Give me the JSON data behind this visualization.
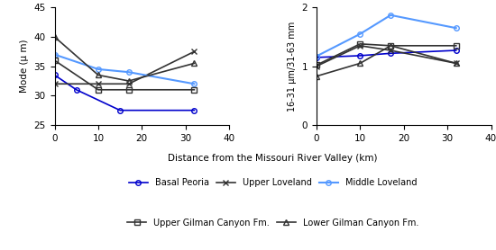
{
  "left_x": {
    "Basal Peoria": [
      0,
      5,
      15,
      32
    ],
    "Upper Loveland": [
      0,
      10,
      17,
      32
    ],
    "Middle Loveland": [
      0,
      10,
      17,
      32
    ],
    "Upper Gilman Canyon Fm.": [
      0,
      10,
      17,
      32
    ],
    "Lower Gilman Canyon Fm.": [
      0,
      10,
      17,
      32
    ]
  },
  "left_y": {
    "Basal Peoria": [
      33.5,
      31.0,
      27.5,
      27.5
    ],
    "Upper Loveland": [
      32.0,
      32.0,
      32.0,
      37.5
    ],
    "Middle Loveland": [
      37.0,
      34.5,
      34.0,
      32.0
    ],
    "Upper Gilman Canyon Fm.": [
      36.0,
      31.0,
      31.0,
      31.0
    ],
    "Lower Gilman Canyon Fm.": [
      40.0,
      33.5,
      32.5,
      35.5
    ]
  },
  "right_x": {
    "Basal Peoria": [
      0,
      10,
      17,
      32
    ],
    "Upper Loveland": [
      0,
      10,
      17,
      32
    ],
    "Middle Loveland": [
      0,
      10,
      17,
      32
    ],
    "Upper Gilman Canyon Fm.": [
      0,
      10,
      17,
      32
    ],
    "Lower Gilman Canyon Fm.": [
      0,
      10,
      17,
      32
    ]
  },
  "right_y": {
    "Basal Peoria": [
      1.15,
      1.18,
      1.22,
      1.27
    ],
    "Upper Loveland": [
      1.0,
      1.35,
      1.27,
      1.05
    ],
    "Middle Loveland": [
      1.17,
      1.55,
      1.87,
      1.65
    ],
    "Upper Gilman Canyon Fm.": [
      1.02,
      1.38,
      1.35,
      1.35
    ],
    "Lower Gilman Canyon Fm.": [
      0.83,
      1.05,
      1.35,
      1.05
    ]
  },
  "left_ylim": [
    25,
    45
  ],
  "right_ylim": [
    0,
    2
  ],
  "xlim": [
    0,
    40
  ],
  "left_yticks": [
    25,
    30,
    35,
    40,
    45
  ],
  "right_yticks": [
    0,
    1,
    2
  ],
  "xticks": [
    0,
    10,
    20,
    30,
    40
  ],
  "xlabel": "Distance from the Missouri River Valley (km)",
  "left_ylabel": "Mode (μ m)",
  "right_ylabel": "16-31 μm/31-63 mm",
  "series_styles": {
    "Basal Peoria": {
      "color": "#0000cc",
      "marker": "o",
      "markersize": 4,
      "linewidth": 1.2,
      "fillstyle": "none"
    },
    "Upper Loveland": {
      "color": "#333333",
      "marker": "x",
      "markersize": 5,
      "linewidth": 1.2,
      "fillstyle": "full"
    },
    "Middle Loveland": {
      "color": "#5599ff",
      "marker": "o",
      "markersize": 4,
      "linewidth": 1.5,
      "fillstyle": "none"
    },
    "Upper Gilman Canyon Fm.": {
      "color": "#333333",
      "marker": "s",
      "markersize": 4,
      "linewidth": 1.2,
      "fillstyle": "none"
    },
    "Lower Gilman Canyon Fm.": {
      "color": "#333333",
      "marker": "^",
      "markersize": 4,
      "linewidth": 1.2,
      "fillstyle": "none"
    }
  },
  "legend_order": [
    "Basal Peoria",
    "Upper Loveland",
    "Middle Loveland",
    "Upper Gilman Canyon Fm.",
    "Lower Gilman Canyon Fm."
  ]
}
